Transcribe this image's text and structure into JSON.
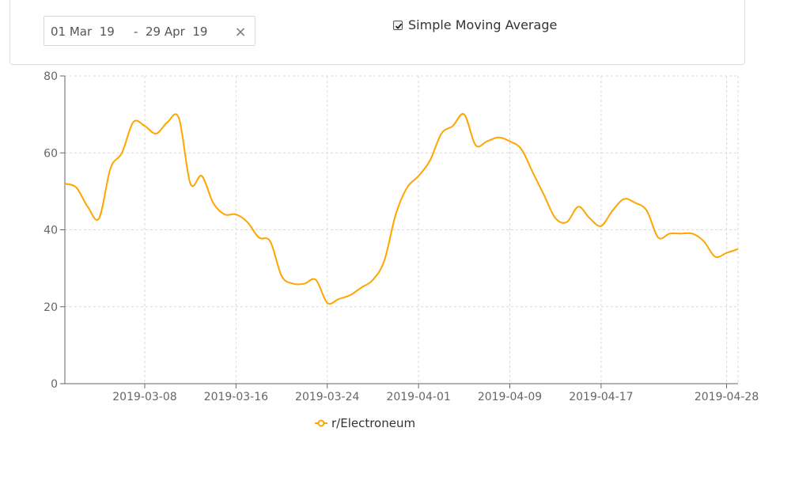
{
  "controls": {
    "date_start": "01 Mar  19",
    "date_separator": "-",
    "date_end": "29 Apr  19",
    "clear_symbol": "×",
    "sma_label": "Simple Moving Average",
    "sma_checked": true
  },
  "chart_data": {
    "type": "line",
    "x_start": "2019-03-01",
    "x_end": "2019-04-29",
    "xticks": [
      "2019-03-08",
      "2019-03-16",
      "2019-03-24",
      "2019-04-01",
      "2019-04-09",
      "2019-04-17",
      "2019-04-28"
    ],
    "ylim": [
      0,
      80
    ],
    "yticks": [
      0,
      20,
      40,
      60,
      80
    ],
    "grid": true,
    "legend_position": "bottom-center",
    "series": [
      {
        "name": "r/Electroneum",
        "color": "#FFA500",
        "x": [
          "2019-03-01",
          "2019-03-02",
          "2019-03-03",
          "2019-03-04",
          "2019-03-05",
          "2019-03-06",
          "2019-03-07",
          "2019-03-08",
          "2019-03-09",
          "2019-03-10",
          "2019-03-11",
          "2019-03-12",
          "2019-03-13",
          "2019-03-14",
          "2019-03-15",
          "2019-03-16",
          "2019-03-17",
          "2019-03-18",
          "2019-03-19",
          "2019-03-20",
          "2019-03-21",
          "2019-03-22",
          "2019-03-23",
          "2019-03-24",
          "2019-03-25",
          "2019-03-26",
          "2019-03-27",
          "2019-03-28",
          "2019-03-29",
          "2019-03-30",
          "2019-03-31",
          "2019-04-01",
          "2019-04-02",
          "2019-04-03",
          "2019-04-04",
          "2019-04-05",
          "2019-04-06",
          "2019-04-07",
          "2019-04-08",
          "2019-04-09",
          "2019-04-10",
          "2019-04-11",
          "2019-04-12",
          "2019-04-13",
          "2019-04-14",
          "2019-04-15",
          "2019-04-16",
          "2019-04-17",
          "2019-04-18",
          "2019-04-19",
          "2019-04-20",
          "2019-04-21",
          "2019-04-22",
          "2019-04-23",
          "2019-04-24",
          "2019-04-25",
          "2019-04-26",
          "2019-04-27",
          "2019-04-28",
          "2019-04-29"
        ],
        "values": [
          52,
          51,
          46,
          43,
          56,
          60,
          68,
          67,
          65,
          68,
          69,
          52,
          54,
          47,
          44,
          44,
          42,
          38,
          37,
          28,
          26,
          26,
          27,
          21,
          22,
          23,
          25,
          27,
          32,
          44,
          51,
          54,
          58,
          65,
          67,
          70,
          62,
          63,
          64,
          63,
          61,
          55,
          49,
          43,
          42,
          46,
          43,
          41,
          45,
          48,
          47,
          45,
          38,
          39,
          39,
          39,
          37,
          33,
          34,
          35
        ]
      }
    ]
  }
}
